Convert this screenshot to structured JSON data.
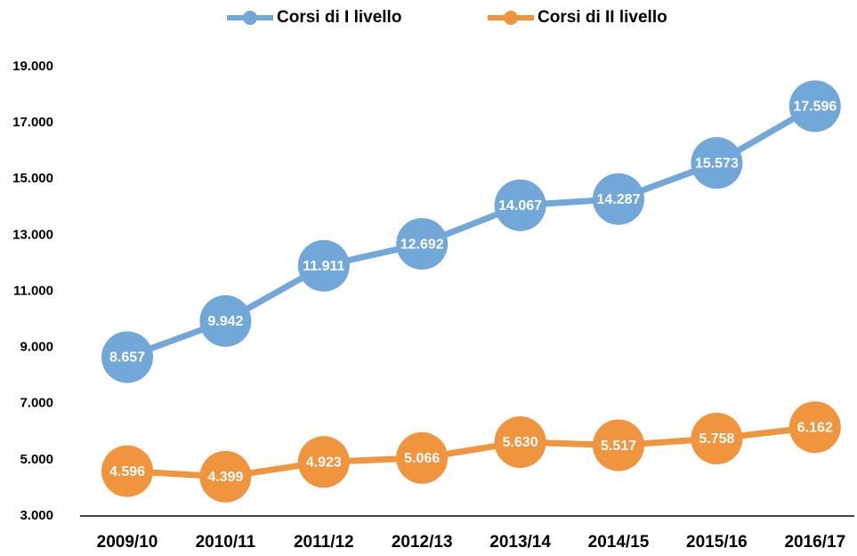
{
  "chart_data": {
    "type": "line",
    "categories": [
      "2009/10",
      "2010/11",
      "2011/12",
      "2012/13",
      "2013/14",
      "2014/15",
      "2015/16",
      "2016/17"
    ],
    "series": [
      {
        "name": "Corsi di I livello",
        "color": "#72a7d9",
        "values": [
          8657,
          9942,
          11911,
          12692,
          14067,
          14287,
          15573,
          17596
        ],
        "value_labels": [
          "8.657",
          "9.942",
          "11.911",
          "12.692",
          "14.067",
          "14.287",
          "15.573",
          "17.596"
        ]
      },
      {
        "name": "Corsi di II livello",
        "color": "#f0943e",
        "values": [
          4596,
          4399,
          4923,
          5066,
          5630,
          5517,
          5758,
          6162
        ],
        "value_labels": [
          "4.596",
          "4.399",
          "4.923",
          "5.066",
          "5.630",
          "5.517",
          "5.758",
          "6.162"
        ]
      }
    ],
    "ylim": [
      3000,
      19000
    ],
    "yticks": [
      {
        "value": 3000,
        "label": "3.000"
      },
      {
        "value": 5000,
        "label": "5.000"
      },
      {
        "value": 7000,
        "label": "7.000"
      },
      {
        "value": 9000,
        "label": "9.000"
      },
      {
        "value": 11000,
        "label": "11.000"
      },
      {
        "value": 13000,
        "label": "13.000"
      },
      {
        "value": 15000,
        "label": "15.000"
      },
      {
        "value": 17000,
        "label": "17.000"
      },
      {
        "value": 19000,
        "label": "19.000"
      }
    ],
    "grid": false
  }
}
